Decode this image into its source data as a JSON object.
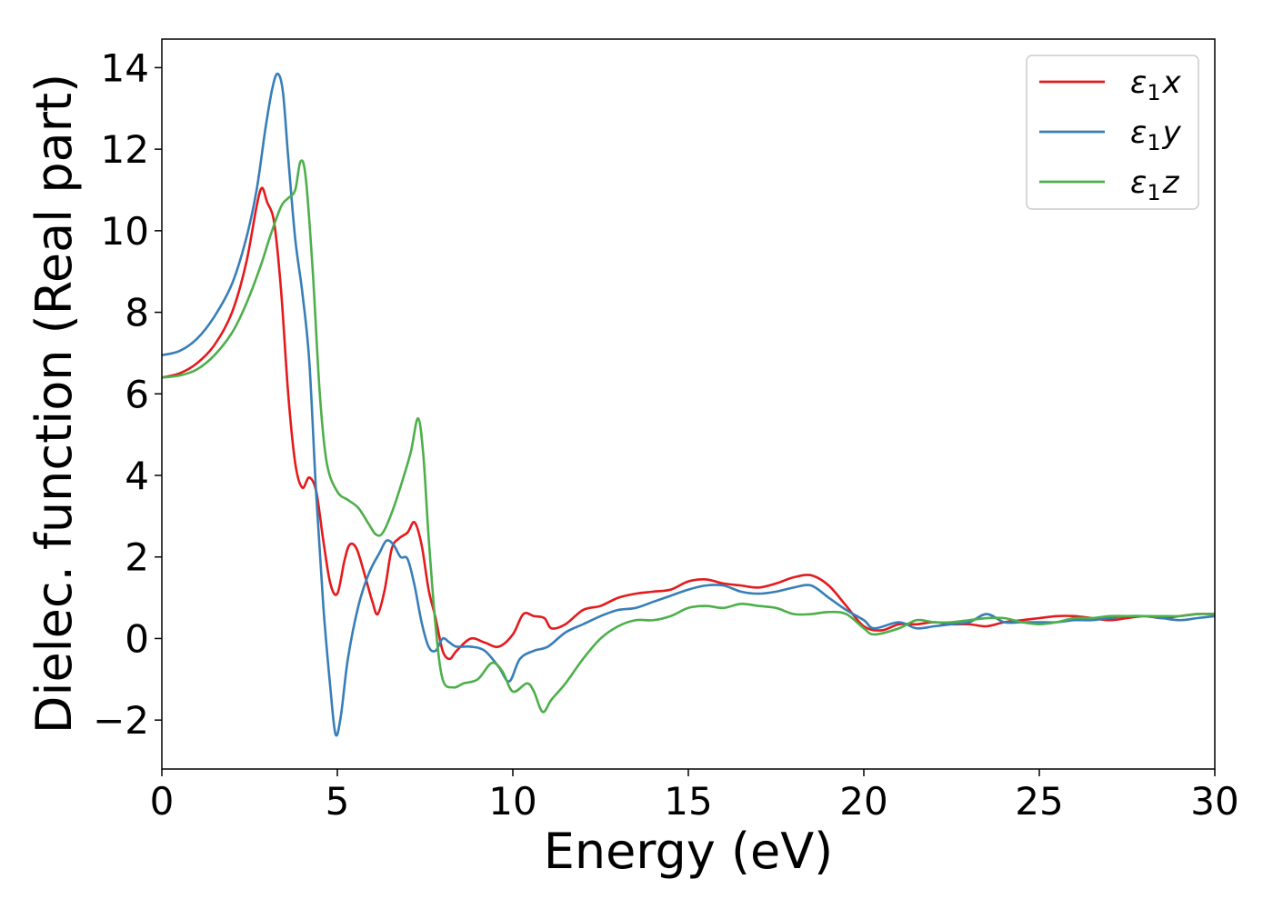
{
  "chart_data": {
    "type": "line",
    "title": "",
    "xlabel": "Energy (eV)",
    "ylabel": "Dielec. function (Real part)",
    "xlim": [
      0,
      30
    ],
    "ylim": [
      -3.2,
      14.7
    ],
    "xticks": [
      0,
      5,
      10,
      15,
      20,
      25,
      30
    ],
    "xtick_labels": [
      "0",
      "5",
      "10",
      "15",
      "20",
      "25",
      "30"
    ],
    "yticks": [
      -2,
      0,
      2,
      4,
      6,
      8,
      10,
      12,
      14
    ],
    "ytick_labels": [
      "−2",
      "0",
      "2",
      "4",
      "6",
      "8",
      "10",
      "12",
      "14"
    ],
    "grid": false,
    "legend_position": "top-right",
    "series": [
      {
        "name": "ε",
        "sub": "1",
        "axis": "x",
        "color": "#e41a1c",
        "points": [
          [
            0,
            6.4
          ],
          [
            0.5,
            6.5
          ],
          [
            1.0,
            6.75
          ],
          [
            1.5,
            7.2
          ],
          [
            2.0,
            8.0
          ],
          [
            2.4,
            9.2
          ],
          [
            2.7,
            10.6
          ],
          [
            2.85,
            11.05
          ],
          [
            3.0,
            10.7
          ],
          [
            3.2,
            10.2
          ],
          [
            3.4,
            8.5
          ],
          [
            3.6,
            6.0
          ],
          [
            3.8,
            4.3
          ],
          [
            4.0,
            3.7
          ],
          [
            4.2,
            3.95
          ],
          [
            4.4,
            3.6
          ],
          [
            4.6,
            2.4
          ],
          [
            4.8,
            1.35
          ],
          [
            5.0,
            1.1
          ],
          [
            5.2,
            1.9
          ],
          [
            5.35,
            2.3
          ],
          [
            5.55,
            2.2
          ],
          [
            5.8,
            1.5
          ],
          [
            6.0,
            0.9
          ],
          [
            6.15,
            0.6
          ],
          [
            6.35,
            1.2
          ],
          [
            6.55,
            2.2
          ],
          [
            6.75,
            2.45
          ],
          [
            7.0,
            2.6
          ],
          [
            7.2,
            2.85
          ],
          [
            7.4,
            2.3
          ],
          [
            7.6,
            1.2
          ],
          [
            7.8,
            0.5
          ],
          [
            8.0,
            -0.3
          ],
          [
            8.2,
            -0.5
          ],
          [
            8.4,
            -0.3
          ],
          [
            8.8,
            0.0
          ],
          [
            9.2,
            -0.1
          ],
          [
            9.6,
            -0.2
          ],
          [
            10.0,
            0.1
          ],
          [
            10.3,
            0.6
          ],
          [
            10.6,
            0.55
          ],
          [
            10.9,
            0.5
          ],
          [
            11.1,
            0.25
          ],
          [
            11.5,
            0.35
          ],
          [
            12.0,
            0.7
          ],
          [
            12.5,
            0.8
          ],
          [
            13.0,
            1.0
          ],
          [
            13.5,
            1.1
          ],
          [
            14.0,
            1.15
          ],
          [
            14.5,
            1.2
          ],
          [
            15.0,
            1.4
          ],
          [
            15.5,
            1.45
          ],
          [
            16.0,
            1.35
          ],
          [
            16.5,
            1.3
          ],
          [
            17.0,
            1.25
          ],
          [
            17.5,
            1.35
          ],
          [
            18.0,
            1.5
          ],
          [
            18.5,
            1.55
          ],
          [
            19.0,
            1.3
          ],
          [
            19.5,
            0.8
          ],
          [
            20.0,
            0.3
          ],
          [
            20.5,
            0.2
          ],
          [
            21.0,
            0.35
          ],
          [
            21.5,
            0.35
          ],
          [
            22.0,
            0.4
          ],
          [
            22.5,
            0.35
          ],
          [
            23.0,
            0.35
          ],
          [
            23.5,
            0.3
          ],
          [
            24.0,
            0.4
          ],
          [
            24.5,
            0.45
          ],
          [
            25.0,
            0.5
          ],
          [
            25.5,
            0.55
          ],
          [
            26.0,
            0.55
          ],
          [
            26.5,
            0.5
          ],
          [
            27.0,
            0.45
          ],
          [
            27.5,
            0.5
          ],
          [
            28.0,
            0.55
          ],
          [
            28.5,
            0.5
          ],
          [
            29.0,
            0.55
          ],
          [
            29.5,
            0.6
          ],
          [
            30.0,
            0.6
          ]
        ]
      },
      {
        "name": "ε",
        "sub": "1",
        "axis": "y",
        "color": "#377eb8",
        "points": [
          [
            0,
            6.95
          ],
          [
            0.5,
            7.05
          ],
          [
            1.0,
            7.35
          ],
          [
            1.5,
            7.9
          ],
          [
            2.0,
            8.7
          ],
          [
            2.4,
            9.8
          ],
          [
            2.7,
            11.0
          ],
          [
            2.95,
            12.5
          ],
          [
            3.15,
            13.5
          ],
          [
            3.3,
            13.85
          ],
          [
            3.45,
            13.4
          ],
          [
            3.6,
            11.8
          ],
          [
            3.8,
            9.8
          ],
          [
            4.0,
            8.5
          ],
          [
            4.2,
            6.8
          ],
          [
            4.4,
            3.5
          ],
          [
            4.6,
            0.8
          ],
          [
            4.8,
            -1.2
          ],
          [
            4.95,
            -2.35
          ],
          [
            5.1,
            -1.9
          ],
          [
            5.3,
            -0.5
          ],
          [
            5.6,
            0.8
          ],
          [
            5.9,
            1.6
          ],
          [
            6.2,
            2.1
          ],
          [
            6.4,
            2.4
          ],
          [
            6.6,
            2.3
          ],
          [
            6.8,
            2.0
          ],
          [
            7.0,
            1.95
          ],
          [
            7.2,
            1.3
          ],
          [
            7.4,
            0.4
          ],
          [
            7.6,
            -0.2
          ],
          [
            7.8,
            -0.3
          ],
          [
            8.0,
            0.0
          ],
          [
            8.2,
            -0.1
          ],
          [
            8.4,
            -0.2
          ],
          [
            8.8,
            -0.2
          ],
          [
            9.2,
            -0.3
          ],
          [
            9.6,
            -0.7
          ],
          [
            9.9,
            -1.05
          ],
          [
            10.2,
            -0.5
          ],
          [
            10.6,
            -0.3
          ],
          [
            11.0,
            -0.2
          ],
          [
            11.5,
            0.15
          ],
          [
            12.0,
            0.35
          ],
          [
            12.5,
            0.55
          ],
          [
            13.0,
            0.7
          ],
          [
            13.5,
            0.75
          ],
          [
            14.0,
            0.9
          ],
          [
            14.5,
            1.05
          ],
          [
            15.0,
            1.2
          ],
          [
            15.5,
            1.3
          ],
          [
            16.0,
            1.3
          ],
          [
            16.5,
            1.15
          ],
          [
            17.0,
            1.1
          ],
          [
            17.5,
            1.15
          ],
          [
            18.0,
            1.25
          ],
          [
            18.5,
            1.3
          ],
          [
            19.0,
            1.0
          ],
          [
            19.5,
            0.7
          ],
          [
            20.0,
            0.45
          ],
          [
            20.3,
            0.25
          ],
          [
            21.0,
            0.4
          ],
          [
            21.5,
            0.25
          ],
          [
            22.0,
            0.3
          ],
          [
            22.5,
            0.35
          ],
          [
            23.0,
            0.4
          ],
          [
            23.5,
            0.6
          ],
          [
            24.0,
            0.4
          ],
          [
            24.5,
            0.4
          ],
          [
            25.0,
            0.4
          ],
          [
            25.5,
            0.4
          ],
          [
            26.0,
            0.45
          ],
          [
            26.5,
            0.45
          ],
          [
            27.0,
            0.5
          ],
          [
            27.5,
            0.55
          ],
          [
            28.0,
            0.55
          ],
          [
            28.5,
            0.5
          ],
          [
            29.0,
            0.45
          ],
          [
            29.5,
            0.5
          ],
          [
            30.0,
            0.55
          ]
        ]
      },
      {
        "name": "ε",
        "sub": "1",
        "axis": "z",
        "color": "#4daf4a",
        "points": [
          [
            0,
            6.4
          ],
          [
            0.5,
            6.45
          ],
          [
            1.0,
            6.6
          ],
          [
            1.5,
            6.95
          ],
          [
            2.0,
            7.5
          ],
          [
            2.4,
            8.2
          ],
          [
            2.8,
            9.1
          ],
          [
            3.1,
            9.9
          ],
          [
            3.4,
            10.6
          ],
          [
            3.6,
            10.8
          ],
          [
            3.8,
            11.0
          ],
          [
            3.95,
            11.7
          ],
          [
            4.1,
            11.3
          ],
          [
            4.3,
            9.0
          ],
          [
            4.5,
            6.0
          ],
          [
            4.7,
            4.3
          ],
          [
            5.0,
            3.6
          ],
          [
            5.3,
            3.4
          ],
          [
            5.6,
            3.2
          ],
          [
            5.9,
            2.8
          ],
          [
            6.1,
            2.55
          ],
          [
            6.3,
            2.6
          ],
          [
            6.6,
            3.2
          ],
          [
            6.9,
            4.0
          ],
          [
            7.1,
            4.6
          ],
          [
            7.3,
            5.4
          ],
          [
            7.45,
            4.5
          ],
          [
            7.6,
            2.5
          ],
          [
            7.8,
            0.3
          ],
          [
            8.0,
            -1.0
          ],
          [
            8.3,
            -1.2
          ],
          [
            8.6,
            -1.1
          ],
          [
            9.0,
            -1.0
          ],
          [
            9.4,
            -0.6
          ],
          [
            9.7,
            -0.8
          ],
          [
            10.0,
            -1.3
          ],
          [
            10.4,
            -1.1
          ],
          [
            10.6,
            -1.3
          ],
          [
            10.85,
            -1.8
          ],
          [
            11.1,
            -1.5
          ],
          [
            11.5,
            -1.1
          ],
          [
            12.0,
            -0.5
          ],
          [
            12.5,
            0.0
          ],
          [
            13.0,
            0.3
          ],
          [
            13.5,
            0.45
          ],
          [
            14.0,
            0.45
          ],
          [
            14.5,
            0.55
          ],
          [
            15.0,
            0.75
          ],
          [
            15.5,
            0.8
          ],
          [
            16.0,
            0.75
          ],
          [
            16.5,
            0.85
          ],
          [
            17.0,
            0.8
          ],
          [
            17.5,
            0.75
          ],
          [
            18.0,
            0.6
          ],
          [
            18.5,
            0.6
          ],
          [
            19.0,
            0.65
          ],
          [
            19.5,
            0.6
          ],
          [
            20.0,
            0.25
          ],
          [
            20.3,
            0.1
          ],
          [
            21.0,
            0.25
          ],
          [
            21.5,
            0.45
          ],
          [
            22.0,
            0.4
          ],
          [
            22.5,
            0.4
          ],
          [
            23.0,
            0.45
          ],
          [
            23.5,
            0.5
          ],
          [
            24.0,
            0.5
          ],
          [
            24.5,
            0.4
          ],
          [
            25.0,
            0.35
          ],
          [
            25.5,
            0.4
          ],
          [
            26.0,
            0.5
          ],
          [
            26.5,
            0.5
          ],
          [
            27.0,
            0.55
          ],
          [
            27.5,
            0.55
          ],
          [
            28.0,
            0.55
          ],
          [
            28.5,
            0.55
          ],
          [
            29.0,
            0.55
          ],
          [
            29.5,
            0.6
          ],
          [
            30.0,
            0.6
          ]
        ]
      }
    ]
  }
}
